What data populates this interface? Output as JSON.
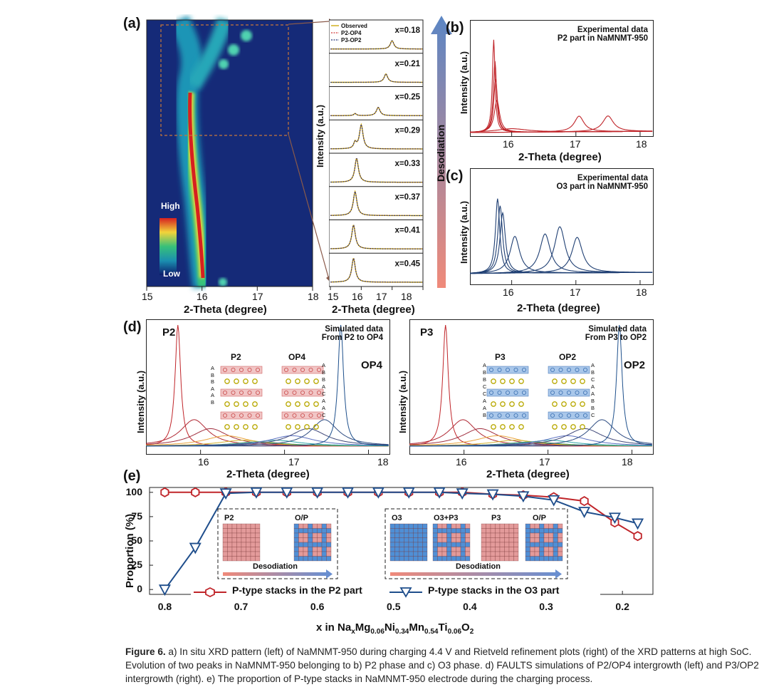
{
  "panel_labels": {
    "a": "(a)",
    "b": "(b)",
    "c": "(c)",
    "d": "(d)",
    "e": "(e)"
  },
  "panel_a": {
    "colorbar": {
      "high": "High",
      "low": "Low"
    },
    "xticks": [
      "15",
      "16",
      "17",
      "18"
    ],
    "xlabel": "2-Theta (degree)"
  },
  "panel_a_right": {
    "legend": [
      "Observed",
      "P2-OP4",
      "P3-OP2"
    ],
    "x_values": [
      "x=0.18",
      "x=0.21",
      "x=0.25",
      "x=0.29",
      "x=0.33",
      "x=0.37",
      "x=0.41",
      "x=0.45"
    ],
    "ylabel": "Intensity (a.u.)",
    "xticks": [
      "15",
      "16",
      "17",
      "18"
    ],
    "xlabel": "2-Theta (degree)",
    "arrow_label": "Desodiation"
  },
  "panel_b": {
    "title1": "Experimental data",
    "title2": "P2 part in NaMNMT-950",
    "ylabel": "Intensity (a.u.)",
    "xticks": [
      "16",
      "17",
      "18"
    ],
    "xlabel": "2-Theta (degree)"
  },
  "panel_c": {
    "title1": "Experimental data",
    "title2": "O3 part in NaMNMT-950",
    "ylabel": "Intensity (a.u.)",
    "xticks": [
      "16",
      "17",
      "18"
    ],
    "xlabel": "2-Theta (degree)"
  },
  "panel_d_left": {
    "peak_left": "P2",
    "peak_right": "OP4",
    "title1": "Simulated data",
    "title2": "From P2 to OP4",
    "struct1": "P2",
    "struct2": "OP4",
    "stack1": [
      "A",
      "B",
      "B",
      "A",
      "A",
      "B"
    ],
    "stack2": [
      "A",
      "B",
      "B",
      "A",
      "C",
      "A",
      "A",
      "C"
    ],
    "ylabel": "Intensity (a.u.)",
    "xticks": [
      "16",
      "17",
      "18"
    ],
    "xlabel": "2-Theta (degree)"
  },
  "panel_d_right": {
    "peak_left": "P3",
    "peak_right": "OP2",
    "title1": "Simulated data",
    "title2": "From P3 to OP2",
    "struct1": "P3",
    "struct2": "OP2",
    "stack1": [
      "A",
      "B",
      "B",
      "C",
      "C",
      "A",
      "A",
      "B"
    ],
    "stack2": [
      "A",
      "B",
      "C",
      "A",
      "A",
      "B",
      "B",
      "C"
    ],
    "ylabel": "Intensity (a.u.)",
    "xticks": [
      "16",
      "17",
      "18"
    ],
    "xlabel": "2-Theta (degree)"
  },
  "panel_e_insets": {
    "left": {
      "tiles": [
        "P2",
        "O/P"
      ],
      "arrow": "Desodiation"
    },
    "right": {
      "tiles": [
        "O3",
        "O3+P3",
        "P3",
        "O/P"
      ],
      "arrow": "Desodiation"
    }
  },
  "chart_data": [
    {
      "type": "line",
      "title": "",
      "xlabel": "x in Na x Mg 0.06 Ni 0.34 Mn 0.54 Ti 0.06 O 2",
      "ylabel": "Proportion (%)",
      "xlim": [
        0.82,
        0.16
      ],
      "ylim": [
        -5,
        105
      ],
      "xticks": [
        "0.8",
        "0.7",
        "0.6",
        "0.5",
        "0.4",
        "0.3",
        "0.2"
      ],
      "yticks": [
        "0",
        "25",
        "50",
        "75",
        "100"
      ],
      "x": [
        0.8,
        0.76,
        0.72,
        0.68,
        0.64,
        0.6,
        0.56,
        0.52,
        0.48,
        0.44,
        0.41,
        0.37,
        0.33,
        0.29,
        0.25,
        0.21,
        0.18
      ],
      "series": [
        {
          "name": "P-type stacks in the P2 part",
          "color": "#c0252a",
          "marker": "hexagon",
          "values": [
            100,
            100,
            100,
            100,
            100,
            100,
            100,
            100,
            100,
            100,
            100,
            98,
            97,
            95,
            91,
            69,
            55
          ]
        },
        {
          "name": "P-type stacks in the O3 part",
          "color": "#1f4e8c",
          "marker": "triangle-down",
          "values": [
            0,
            43,
            99,
            100,
            100,
            100,
            100,
            100,
            100,
            100,
            99,
            98,
            96,
            92,
            80,
            74,
            68
          ]
        }
      ]
    }
  ],
  "xlabel_parts": {
    "a": "x in Na",
    "b": "x",
    "c": "Mg",
    "d": "0.06",
    "e": "Ni",
    "f": "0.34",
    "g": "Mn",
    "h": "0.54",
    "i": "Ti",
    "j": "0.06",
    "k": "O",
    "l": "2"
  },
  "caption": {
    "fig": "Figure 6.",
    "text": " a) In situ XRD pattern (left) of NaMNMT-950 during charging 4.4 V and Rietveld refinement plots (right) of the XRD patterns at high SoC. Evolution of two peaks in NaMNMT-950 belonging to b) P2 phase and c) O3 phase. d) FAULTS simulations of P2/OP4 intergrowth (left) and P3/OP2 intergrowth (right). e) The proportion of P-type stacks in NaMNMT-950 electrode during the charging process."
  }
}
